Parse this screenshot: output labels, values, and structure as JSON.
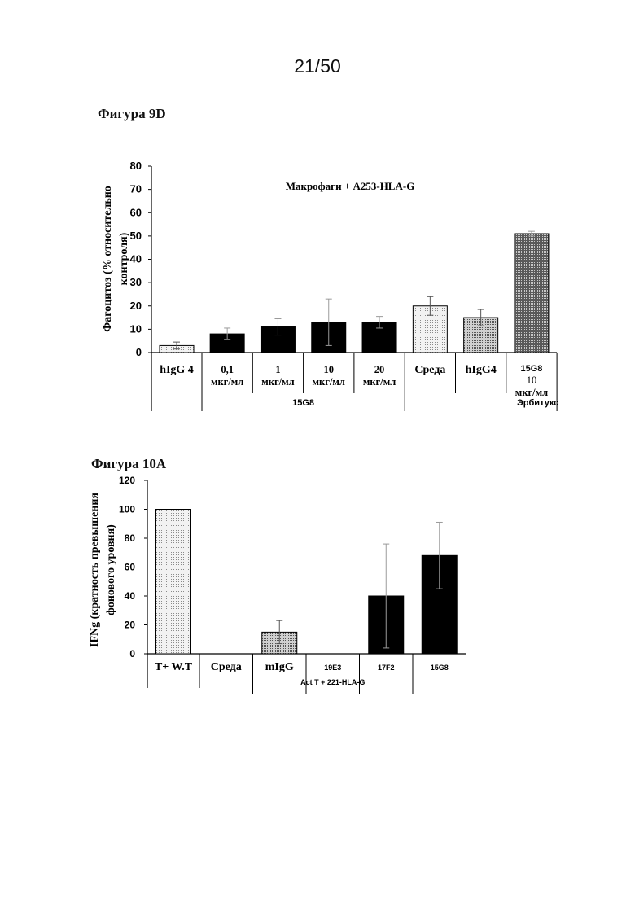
{
  "page_number": "21/50",
  "figures": [
    {
      "title": "Фигура 9D",
      "chart_data": {
        "type": "bar",
        "title": "Макрофаги + A253-HLA-G",
        "ylabel": "Фагоцитоз (% относительно контроля)",
        "ylabel_lines": [
          "Фагоцитоз (% относительно",
          "контроля)"
        ],
        "ylim": [
          0,
          80
        ],
        "yticks": [
          "0",
          "10",
          "20",
          "30",
          "40",
          "50",
          "60",
          "70",
          "80"
        ],
        "categories": [
          {
            "lines": [
              "hIgG 4"
            ],
            "value": 3,
            "err": 1.5,
            "pattern": "light"
          },
          {
            "lines": [
              "0,1",
              "мкг/мл"
            ],
            "value": 8,
            "err": 2.5,
            "pattern": "black"
          },
          {
            "lines": [
              "1",
              "мкг/мл"
            ],
            "value": 11,
            "err": 3.5,
            "pattern": "black"
          },
          {
            "lines": [
              "10",
              "мкг/мл"
            ],
            "value": 13,
            "err": 10,
            "pattern": "black"
          },
          {
            "lines": [
              "20",
              "мкг/мл"
            ],
            "value": 13,
            "err": 2.5,
            "pattern": "black"
          },
          {
            "lines": [
              "Среда"
            ],
            "value": 20,
            "err": 4,
            "pattern": "light"
          },
          {
            "lines": [
              "hIgG4"
            ],
            "value": 15,
            "err": 3.5,
            "pattern": "medium"
          },
          {
            "lines": [
              "15G8",
              "10",
              "мкг/мл"
            ],
            "value": 51,
            "err": 1,
            "pattern": "dark"
          }
        ],
        "groups": [
          {
            "label": "15G8",
            "from": 1,
            "to": 4
          },
          {
            "label": "Эрбитукс",
            "from": 5,
            "to": 7
          }
        ]
      }
    },
    {
      "title": "Фигура 10A",
      "chart_data": {
        "type": "bar",
        "title": "",
        "ylabel": "IFNg (кратность превышения фонового уровня)",
        "ylabel_lines": [
          "IFNg (кратность превышения",
          "фонового уровня)"
        ],
        "ylim": [
          0,
          120
        ],
        "yticks": [
          "0",
          "20",
          "40",
          "60",
          "80",
          "100",
          "120"
        ],
        "categories": [
          {
            "lines": [
              "T+ W.T"
            ],
            "value": 100,
            "err": 0,
            "pattern": "light"
          },
          {
            "lines": [
              "Среда"
            ],
            "value": 0,
            "err": 0,
            "pattern": "none"
          },
          {
            "lines": [
              "mIgG"
            ],
            "value": 15,
            "err": 8,
            "pattern": "medium"
          },
          {
            "lines": [
              "19E3"
            ],
            "value": 0,
            "err": 0,
            "pattern": "none"
          },
          {
            "lines": [
              "17F2"
            ],
            "value": 40,
            "err": 36,
            "pattern": "black"
          },
          {
            "lines": [
              "15G8"
            ],
            "value": 68,
            "err": 23,
            "pattern": "black"
          }
        ],
        "groups": [
          {
            "label": "Act T + 221-HLA-G",
            "from": 1,
            "to": 5
          }
        ]
      }
    }
  ]
}
